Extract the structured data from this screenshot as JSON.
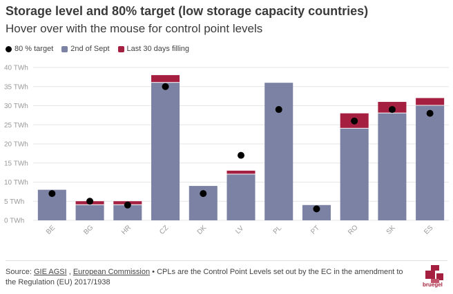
{
  "title": "Storage level and 80% target (low storage capacity countries)",
  "subtitle": "Hover over with the mouse for control point levels",
  "legend": {
    "target": "80 % target",
    "sept": "2nd of Sept",
    "fill": "Last 30 days filling"
  },
  "colors": {
    "sept": "#7b82a3",
    "fill": "#a51f41",
    "target": "#000000",
    "brand": "#a51f41"
  },
  "chart_data": {
    "type": "bar",
    "stacked": true,
    "categories": [
      "BE",
      "BG",
      "HR",
      "CZ",
      "DK",
      "LV",
      "PL",
      "PT",
      "RO",
      "SK",
      "ES"
    ],
    "series": [
      {
        "name": "2nd of Sept",
        "values": [
          8,
          4,
          4,
          36,
          9,
          12,
          36,
          4,
          24,
          28,
          30
        ]
      },
      {
        "name": "Last 30 days filling",
        "values": [
          0,
          1,
          1,
          2,
          0,
          1,
          0,
          0,
          4,
          3,
          2
        ]
      }
    ],
    "target": {
      "name": "80 % target",
      "values": [
        7,
        5,
        4,
        35,
        7,
        17,
        29,
        3,
        26,
        29,
        28
      ]
    },
    "ylim": [
      0,
      40
    ],
    "yticks": [
      0,
      5,
      10,
      15,
      20,
      25,
      30,
      35,
      40
    ],
    "y_unit": "TWh",
    "title": "Storage level and 80% target (low storage capacity countries)"
  },
  "footer": {
    "source_prefix": "Source: ",
    "link1": "GIE AGSI",
    "sep": " , ",
    "link2": "European Commission",
    "note": " • CPLs are the Control Point Levels set out by the EC in the amendment to the Regulation (EU) 2017/1938"
  },
  "logo_text": "bruegel"
}
